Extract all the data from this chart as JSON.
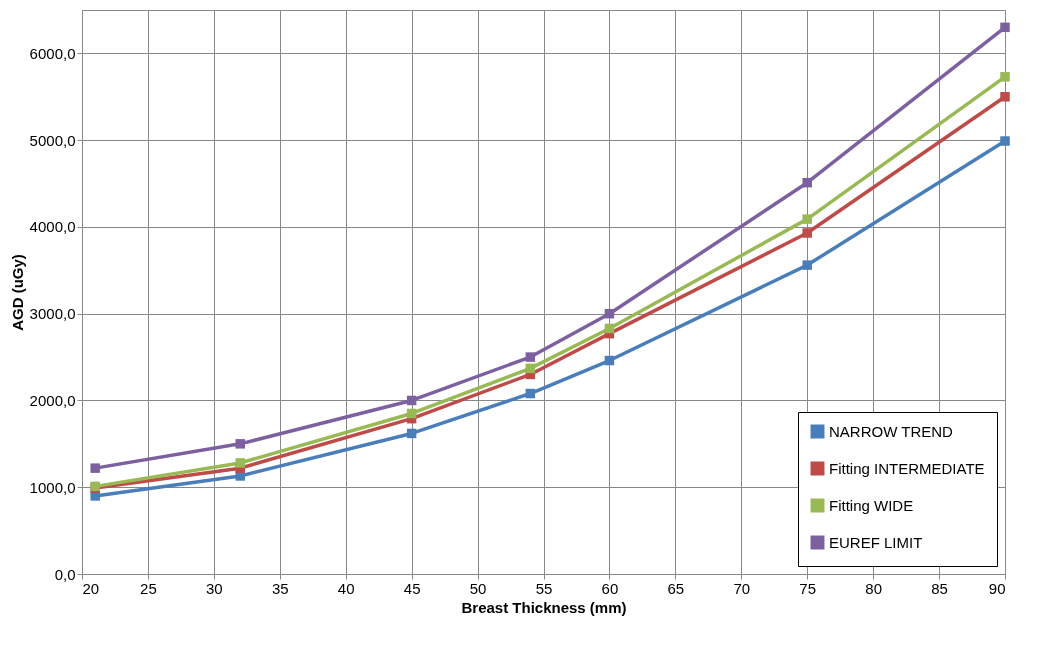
{
  "chart_data": {
    "type": "line",
    "xlabel": "Breast Thickness  (mm)",
    "ylabel": "AGD (uGy)",
    "x": [
      21,
      32,
      45,
      54,
      60,
      75,
      90
    ],
    "xlim": [
      20,
      90
    ],
    "xticks": [
      20,
      25,
      30,
      35,
      40,
      45,
      50,
      55,
      60,
      65,
      70,
      75,
      80,
      85,
      90
    ],
    "ylim": [
      0,
      6500
    ],
    "yticks": [
      {
        "value": 0,
        "label": "0,0"
      },
      {
        "value": 1000,
        "label": "1000,0"
      },
      {
        "value": 2000,
        "label": "2000,0"
      },
      {
        "value": 3000,
        "label": "3000,0"
      },
      {
        "value": 4000,
        "label": "4000,0"
      },
      {
        "value": 5000,
        "label": "5000,0"
      },
      {
        "value": 6000,
        "label": "6000,0"
      }
    ],
    "grid": true,
    "legend": "bottom right",
    "marker": "square",
    "line_style": "solid",
    "series": [
      {
        "name": "NARROW TREND",
        "color": "#4a7ebb",
        "values": [
          900,
          1130,
          1620,
          2080,
          2460,
          3560,
          4990
        ]
      },
      {
        "name": "Fitting INTERMEDIATE",
        "color": "#be4b48",
        "values": [
          990,
          1220,
          1790,
          2300,
          2770,
          3930,
          5500
        ]
      },
      {
        "name": "Fitting WIDE",
        "color": "#98b954",
        "values": [
          1010,
          1280,
          1850,
          2370,
          2830,
          4090,
          5730
        ]
      },
      {
        "name": "EUREF LIMIT",
        "color": "#7d60a0",
        "values": [
          1220,
          1500,
          2000,
          2500,
          3000,
          4510,
          6300
        ]
      }
    ]
  }
}
